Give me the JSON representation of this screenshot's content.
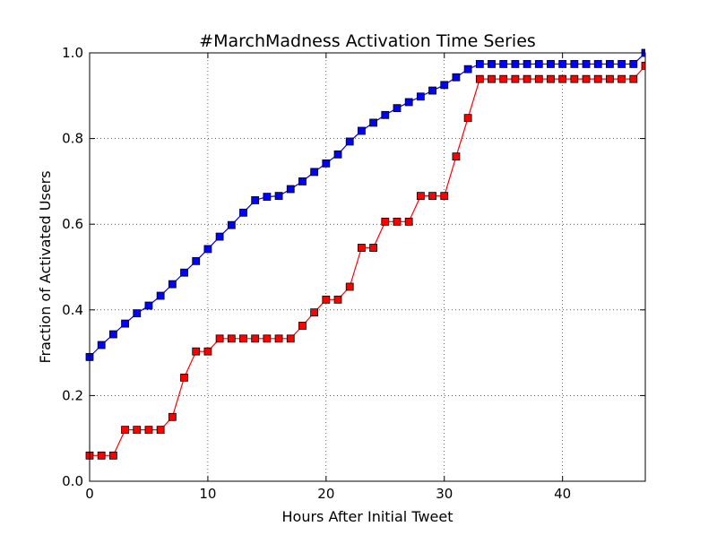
{
  "chart_data": {
    "type": "line",
    "title": "#MarchMadness Activation Time Series",
    "xlabel": "Hours After Initial Tweet",
    "ylabel": "Fraction of Activated Users",
    "xlim": [
      0,
      47
    ],
    "ylim": [
      0.0,
      1.0
    ],
    "xticks": [
      0,
      10,
      20,
      30,
      40
    ],
    "xtick_labels": [
      "0",
      "10",
      "20",
      "30",
      "40"
    ],
    "yticks": [
      0.0,
      0.2,
      0.4,
      0.6,
      0.8,
      1.0
    ],
    "ytick_labels": [
      "0.0",
      "0.2",
      "0.4",
      "0.6",
      "0.8",
      "1.0"
    ],
    "grid": true,
    "x": [
      0,
      1,
      2,
      3,
      4,
      5,
      6,
      7,
      8,
      9,
      10,
      11,
      12,
      13,
      14,
      15,
      16,
      17,
      18,
      19,
      20,
      21,
      22,
      23,
      24,
      25,
      26,
      27,
      28,
      29,
      30,
      31,
      32,
      33,
      34,
      35,
      36,
      37,
      38,
      39,
      40,
      41,
      42,
      43,
      44,
      45,
      46,
      47
    ],
    "series": [
      {
        "color": "#0000ff",
        "marker": "square",
        "values": [
          0.29,
          0.318,
          0.343,
          0.368,
          0.392,
          0.41,
          0.433,
          0.46,
          0.487,
          0.514,
          0.542,
          0.571,
          0.598,
          0.627,
          0.656,
          0.664,
          0.666,
          0.682,
          0.7,
          0.722,
          0.742,
          0.763,
          0.793,
          0.818,
          0.837,
          0.855,
          0.871,
          0.885,
          0.898,
          0.912,
          0.925,
          0.943,
          0.962,
          0.974,
          0.974,
          0.974,
          0.974,
          0.974,
          0.974,
          0.974,
          0.974,
          0.974,
          0.974,
          0.974,
          0.974,
          0.974,
          0.974,
          1.0
        ]
      },
      {
        "color": "#ff0000",
        "marker": "square",
        "values": [
          0.06,
          0.06,
          0.06,
          0.12,
          0.12,
          0.12,
          0.12,
          0.15,
          0.242,
          0.303,
          0.303,
          0.333,
          0.333,
          0.333,
          0.333,
          0.333,
          0.333,
          0.333,
          0.363,
          0.394,
          0.424,
          0.424,
          0.454,
          0.545,
          0.545,
          0.606,
          0.606,
          0.606,
          0.666,
          0.666,
          0.666,
          0.758,
          0.848,
          0.939,
          0.939,
          0.939,
          0.939,
          0.939,
          0.939,
          0.939,
          0.939,
          0.939,
          0.939,
          0.939,
          0.939,
          0.939,
          0.939,
          0.97
        ]
      }
    ]
  }
}
